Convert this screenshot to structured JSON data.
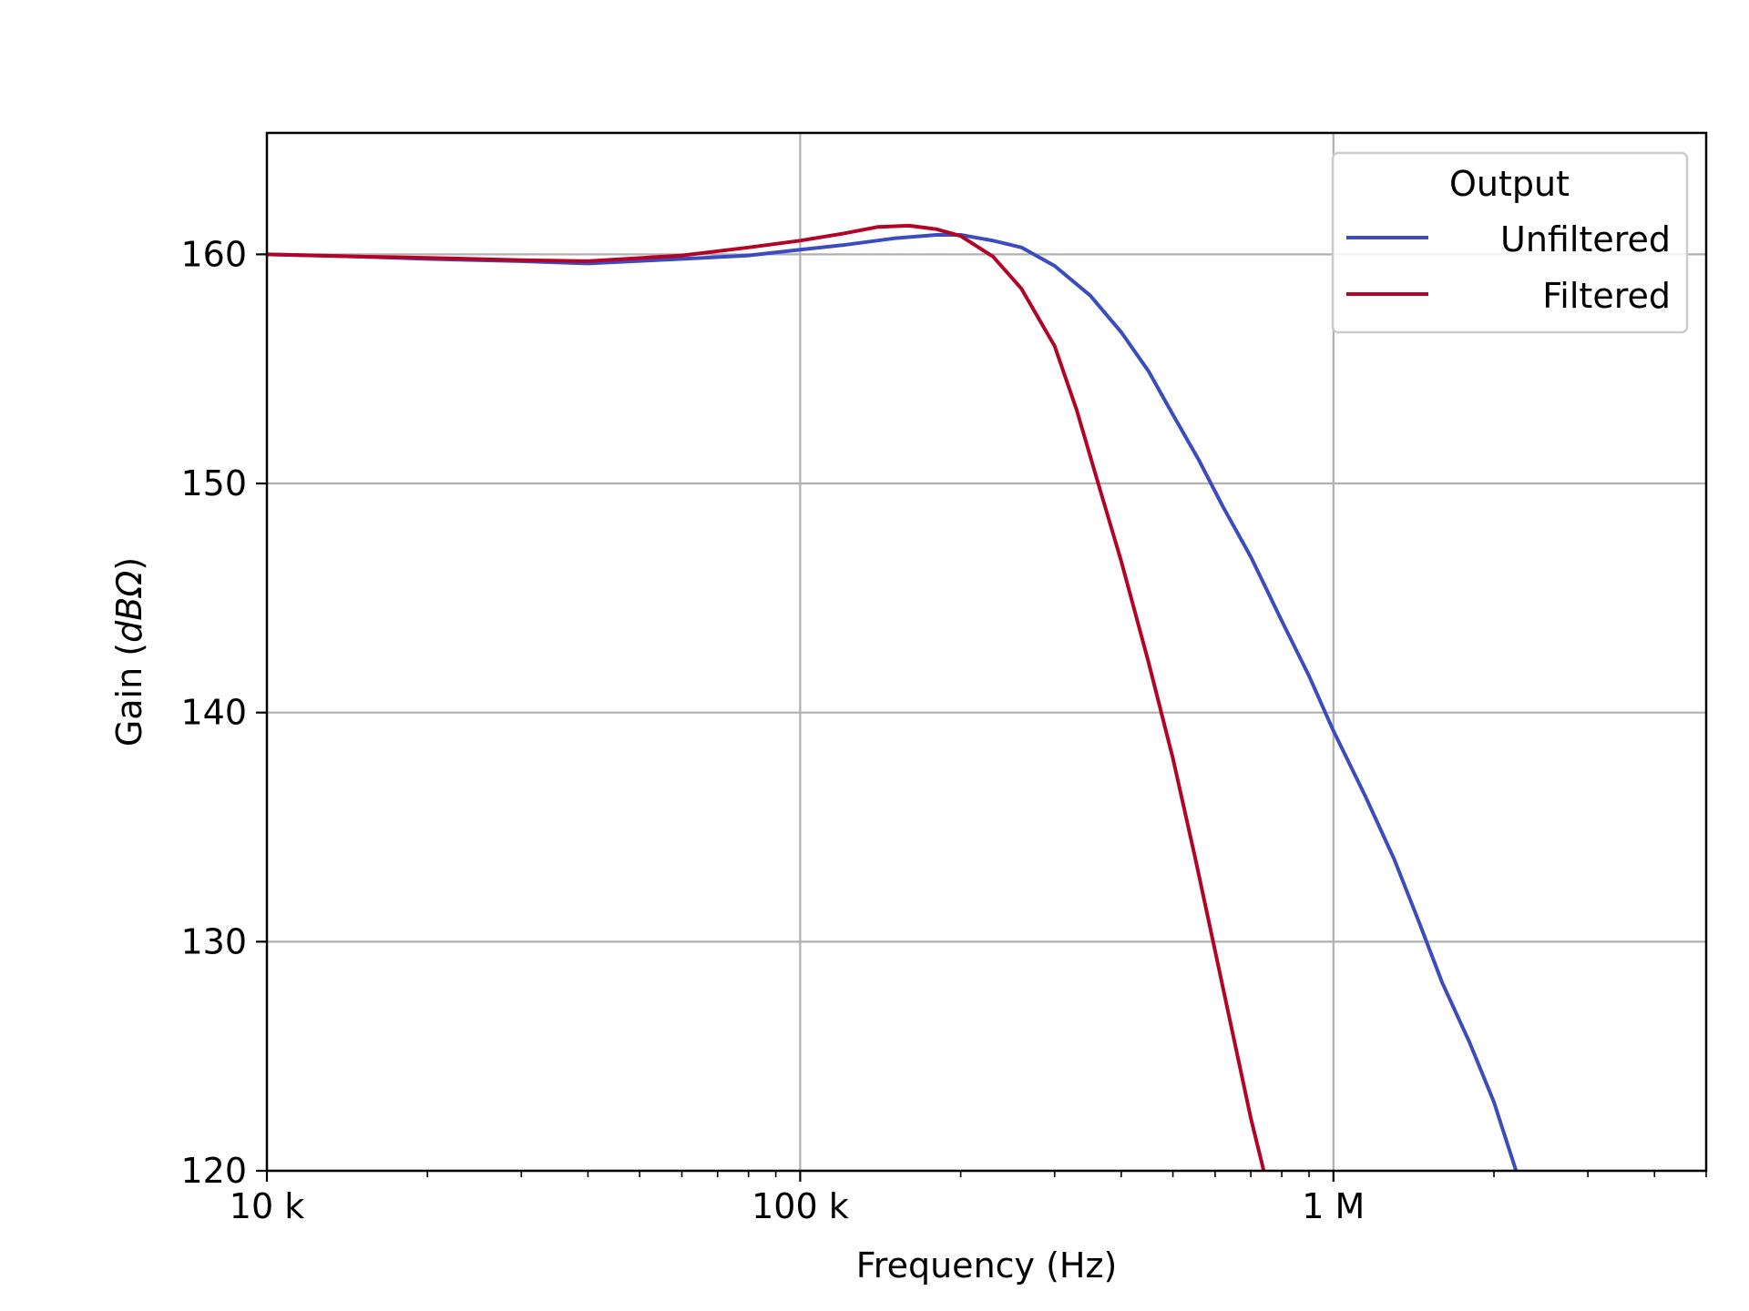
{
  "chart_data": {
    "type": "line",
    "xlabel": "Frequency (Hz)",
    "ylabel_prefix": "Gain (",
    "ylabel_unit": "dBΩ",
    "ylabel_suffix": ")",
    "xscale": "log",
    "xlim": [
      10000,
      5000000
    ],
    "ylim": [
      120,
      165.3
    ],
    "grid": true,
    "x_ticks": [
      {
        "value": 10000,
        "label": "10 k"
      },
      {
        "value": 100000,
        "label": "100 k"
      },
      {
        "value": 1000000,
        "label": "1 M"
      }
    ],
    "y_ticks": [
      {
        "value": 120,
        "label": "120"
      },
      {
        "value": 130,
        "label": "130"
      },
      {
        "value": 140,
        "label": "140"
      },
      {
        "value": 150,
        "label": "150"
      },
      {
        "value": 160,
        "label": "160"
      }
    ],
    "legend": {
      "title": "Output",
      "placement": "top-right"
    },
    "series": [
      {
        "name": "Unfiltered",
        "color": "#3a4cc0",
        "points": [
          [
            10000,
            160.0
          ],
          [
            15000,
            159.9
          ],
          [
            20000,
            159.8
          ],
          [
            30000,
            159.7
          ],
          [
            40000,
            159.6
          ],
          [
            60000,
            159.8
          ],
          [
            80000,
            159.95
          ],
          [
            100000,
            160.2
          ],
          [
            120000,
            160.4
          ],
          [
            150000,
            160.7
          ],
          [
            180000,
            160.85
          ],
          [
            200000,
            160.85
          ],
          [
            230000,
            160.6
          ],
          [
            260000,
            160.3
          ],
          [
            300000,
            159.5
          ],
          [
            350000,
            158.2
          ],
          [
            400000,
            156.6
          ],
          [
            450000,
            154.9
          ],
          [
            500000,
            153.0
          ],
          [
            560000,
            151.0
          ],
          [
            620000,
            149.0
          ],
          [
            700000,
            146.8
          ],
          [
            800000,
            144.0
          ],
          [
            900000,
            141.6
          ],
          [
            1000000,
            139.2
          ],
          [
            1150000,
            136.3
          ],
          [
            1300000,
            133.6
          ],
          [
            1450000,
            130.8
          ],
          [
            1600000,
            128.2
          ],
          [
            1800000,
            125.6
          ],
          [
            2000000,
            123.0
          ],
          [
            2200000,
            120.0
          ]
        ]
      },
      {
        "name": "Filtered",
        "color": "#b40426",
        "points": [
          [
            10000,
            160.0
          ],
          [
            15000,
            159.9
          ],
          [
            20000,
            159.85
          ],
          [
            30000,
            159.75
          ],
          [
            40000,
            159.7
          ],
          [
            60000,
            159.95
          ],
          [
            80000,
            160.3
          ],
          [
            100000,
            160.6
          ],
          [
            120000,
            160.9
          ],
          [
            140000,
            161.2
          ],
          [
            160000,
            161.25
          ],
          [
            180000,
            161.1
          ],
          [
            200000,
            160.8
          ],
          [
            230000,
            159.9
          ],
          [
            260000,
            158.5
          ],
          [
            300000,
            156.0
          ],
          [
            330000,
            153.2
          ],
          [
            360000,
            150.2
          ],
          [
            400000,
            146.6
          ],
          [
            450000,
            142.2
          ],
          [
            500000,
            138.0
          ],
          [
            550000,
            133.7
          ],
          [
            600000,
            129.6
          ],
          [
            650000,
            125.8
          ],
          [
            700000,
            122.3
          ],
          [
            740000,
            120.0
          ]
        ]
      }
    ]
  }
}
